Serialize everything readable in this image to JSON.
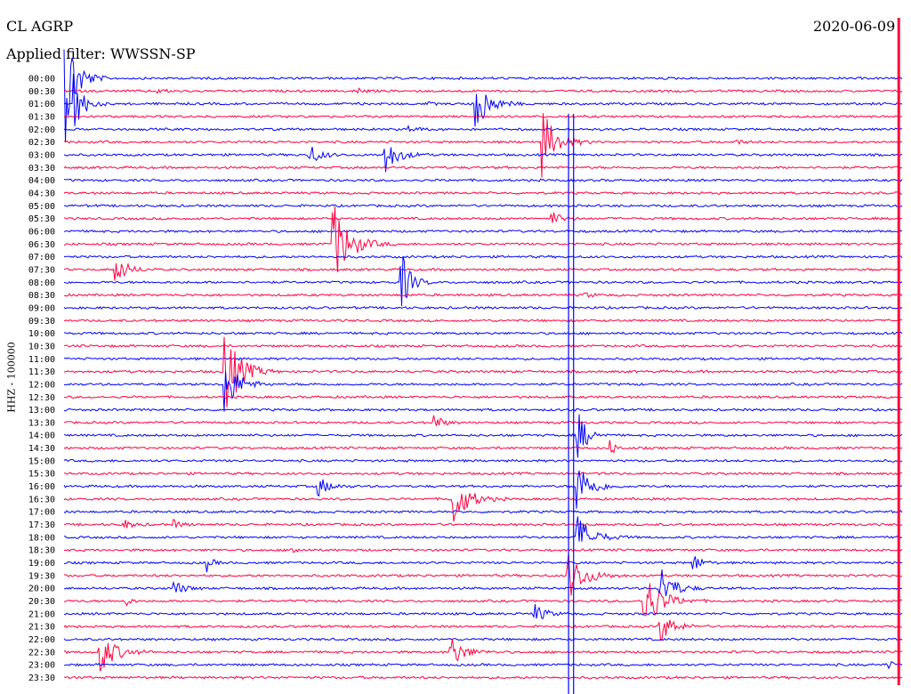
{
  "header": {
    "station": "CL AGRP",
    "filter": "Applied filter: WWSSN-SP",
    "date": "2020-06-09"
  },
  "chart_data": {
    "type": "line",
    "title": "",
    "ylabel": "HHZ - 100000",
    "colors": {
      "even": "#0000ff",
      "odd": "#ff0040"
    },
    "row_labels": [
      "00:00",
      "00:30",
      "01:00",
      "01:30",
      "02:00",
      "02:30",
      "03:00",
      "03:30",
      "04:00",
      "04:30",
      "05:00",
      "05:30",
      "06:00",
      "06:30",
      "07:00",
      "07:30",
      "08:00",
      "08:30",
      "09:00",
      "09:30",
      "10:00",
      "10:30",
      "11:00",
      "11:30",
      "12:00",
      "12:30",
      "13:00",
      "13:30",
      "14:00",
      "14:30",
      "15:00",
      "15:30",
      "16:00",
      "16:30",
      "17:00",
      "17:30",
      "18:00",
      "18:30",
      "19:00",
      "19:30",
      "20:00",
      "20:30",
      "21:00",
      "21:30",
      "22:00",
      "22:30",
      "23:00",
      "23:30"
    ],
    "events": [
      [
        0,
        0.0,
        12,
        82
      ],
      [
        2,
        0.01,
        10,
        45
      ],
      [
        1,
        0.11,
        7,
        4
      ],
      [
        1,
        0.35,
        7,
        4
      ],
      [
        2,
        0.43,
        6,
        3
      ],
      [
        2,
        0.49,
        14,
        35
      ],
      [
        4,
        0.41,
        10,
        4
      ],
      [
        5,
        0.57,
        15,
        40
      ],
      [
        5,
        0.8,
        10,
        3
      ],
      [
        6,
        0.29,
        12,
        15
      ],
      [
        6,
        0.38,
        14,
        25
      ],
      [
        11,
        0.58,
        10,
        10
      ],
      [
        13,
        0.32,
        18,
        50
      ],
      [
        15,
        0.06,
        12,
        20
      ],
      [
        16,
        0.4,
        10,
        45
      ],
      [
        17,
        0.62,
        8,
        4
      ],
      [
        23,
        0.19,
        16,
        60
      ],
      [
        24,
        0.19,
        14,
        40
      ],
      [
        27,
        0.44,
        8,
        14
      ],
      [
        28,
        0.61,
        10,
        40
      ],
      [
        29,
        0.65,
        6,
        12
      ],
      [
        32,
        0.3,
        12,
        15
      ],
      [
        32,
        0.61,
        14,
        38
      ],
      [
        33,
        0.46,
        16,
        40
      ],
      [
        35,
        0.07,
        10,
        6
      ],
      [
        35,
        0.13,
        9,
        5
      ],
      [
        36,
        0.61,
        16,
        30
      ],
      [
        37,
        0.27,
        6,
        8
      ],
      [
        38,
        0.17,
        6,
        10
      ],
      [
        38,
        0.75,
        8,
        14
      ],
      [
        39,
        0.6,
        18,
        30
      ],
      [
        40,
        0.13,
        11,
        10
      ],
      [
        41,
        0.07,
        6,
        10
      ],
      [
        40,
        0.71,
        14,
        30
      ],
      [
        41,
        0.69,
        18,
        40
      ],
      [
        42,
        0.56,
        12,
        12
      ],
      [
        43,
        0.71,
        14,
        20
      ],
      [
        45,
        0.04,
        16,
        30
      ],
      [
        45,
        0.46,
        14,
        20
      ],
      [
        46,
        0.98,
        8,
        6
      ]
    ],
    "vertical_spikes": [
      [
        0.602,
        128,
        780
      ],
      [
        0.608,
        128,
        780
      ],
      [
        0.996,
        20,
        770
      ]
    ]
  }
}
